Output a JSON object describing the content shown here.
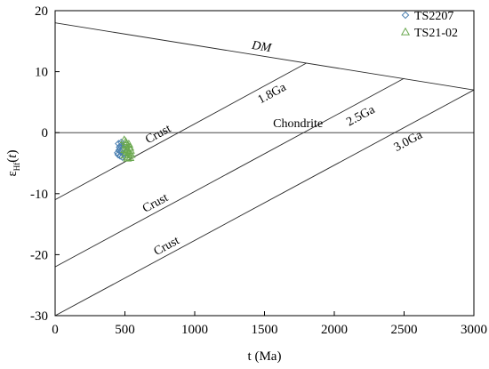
{
  "chart_data": {
    "type": "scatter",
    "xlabel": "t (Ma)",
    "ylabel": {
      "base": "ε",
      "sub": "Hf",
      "suffix": "(t)"
    },
    "xlim": [
      0,
      3000
    ],
    "ylim": [
      -30,
      20
    ],
    "x_ticks": [
      0,
      500,
      1000,
      1500,
      2000,
      2500,
      3000
    ],
    "y_ticks": [
      -30,
      -20,
      -10,
      0,
      10,
      20
    ],
    "grid": false,
    "legend_position": "top-right",
    "reference_lines": [
      {
        "label": "DM",
        "italic": true,
        "x": [
          0,
          3000
        ],
        "y": [
          18,
          7
        ]
      },
      {
        "label": "Chondrite",
        "italic": false,
        "x": [
          0,
          3000
        ],
        "y": [
          0,
          0
        ]
      },
      {
        "label": "1.8Ga",
        "italic": false,
        "x": [
          0,
          1800
        ],
        "y": [
          -11,
          11.4
        ]
      },
      {
        "label": "2.5Ga",
        "italic": false,
        "x": [
          0,
          2500
        ],
        "y": [
          -22,
          8.9
        ]
      },
      {
        "label": "3.0Ga",
        "italic": false,
        "x": [
          0,
          3000
        ],
        "y": [
          -30,
          7
        ]
      }
    ],
    "crust_labels": [
      "Crust",
      "Crust",
      "Crust"
    ],
    "series": [
      {
        "name": "TS2207",
        "marker": "diamond",
        "color": "#4a7fb0",
        "points": [
          [
            455,
            -1.8
          ],
          [
            462,
            -2.4
          ],
          [
            470,
            -3.1
          ],
          [
            478,
            -2.0
          ],
          [
            485,
            -2.8
          ],
          [
            448,
            -3.3
          ],
          [
            466,
            -3.8
          ],
          [
            474,
            -1.6
          ],
          [
            490,
            -3.5
          ],
          [
            458,
            -2.9
          ],
          [
            482,
            -4.0
          ],
          [
            468,
            -2.2
          ],
          [
            452,
            -3.6
          ],
          [
            488,
            -2.5
          ]
        ]
      },
      {
        "name": "TS21-02",
        "marker": "triangle",
        "color": "#6aa84f",
        "points": [
          [
            495,
            -1.2
          ],
          [
            505,
            -2.0
          ],
          [
            515,
            -2.6
          ],
          [
            525,
            -3.2
          ],
          [
            535,
            -2.4
          ],
          [
            500,
            -3.7
          ],
          [
            510,
            -1.8
          ],
          [
            520,
            -4.0
          ],
          [
            530,
            -3.4
          ],
          [
            540,
            -2.9
          ],
          [
            498,
            -2.8
          ],
          [
            512,
            -3.0
          ],
          [
            528,
            -1.9
          ],
          [
            545,
            -3.6
          ],
          [
            518,
            -4.2
          ],
          [
            506,
            -1.5
          ],
          [
            536,
            -4.1
          ]
        ]
      }
    ]
  }
}
